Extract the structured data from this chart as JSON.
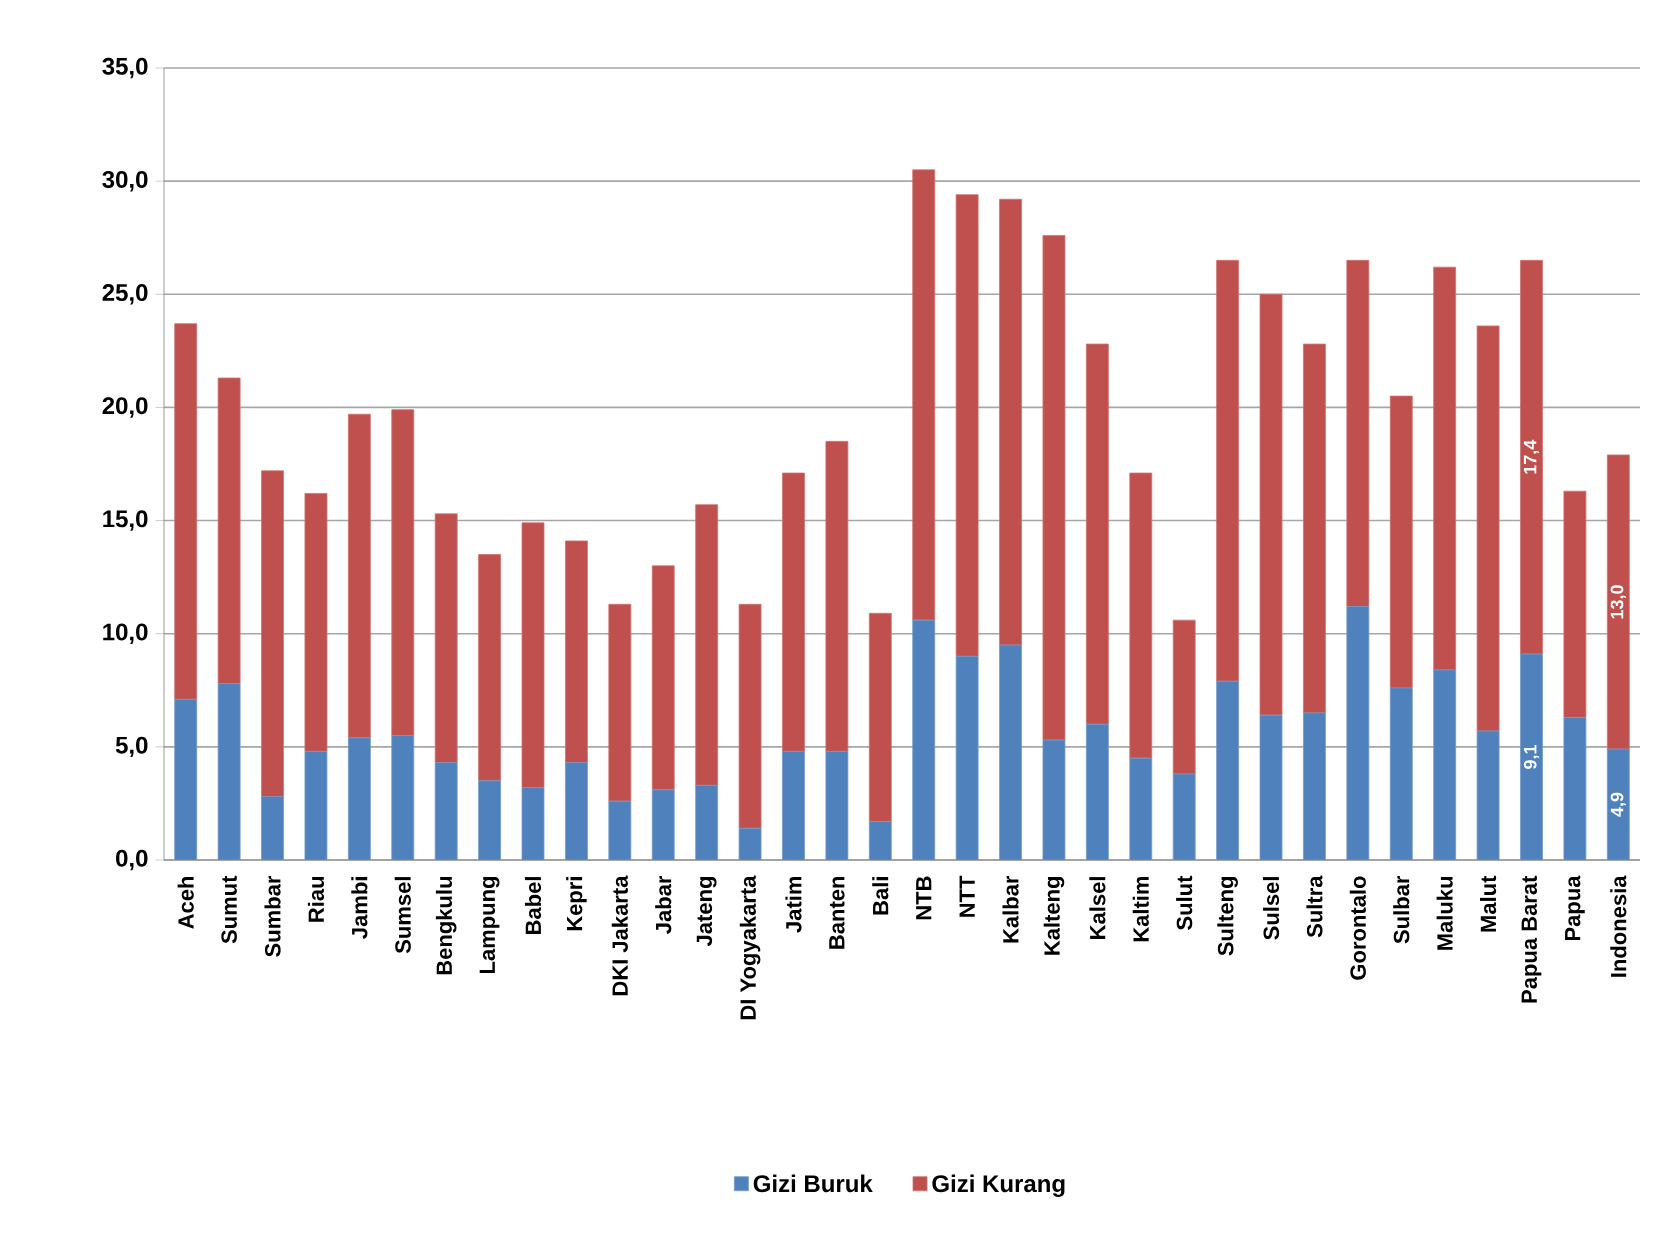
{
  "chart_data": {
    "type": "bar",
    "stacked": true,
    "grid": "y",
    "legend": "bottom",
    "categories": [
      "Aceh",
      "Sumut",
      "Sumbar",
      "Riau",
      "Jambi",
      "Sumsel",
      "Bengkulu",
      "Lampung",
      "Babel",
      "Kepri",
      "DKI Jakarta",
      "Jabar",
      "Jateng",
      "DI Yogyakarta",
      "Jatim",
      "Banten",
      "Bali",
      "NTB",
      "NTT",
      "Kalbar",
      "Kalteng",
      "Kalsel",
      "Kaltim",
      "Sulut",
      "Sulteng",
      "Sulsel",
      "Sultra",
      "Gorontalo",
      "Sulbar",
      "Maluku",
      "Malut",
      "Papua Barat",
      "Papua",
      "Indonesia"
    ],
    "series": [
      {
        "name": "Gizi Buruk",
        "color": "#4f81bd",
        "values": [
          7.1,
          7.8,
          2.8,
          4.8,
          5.4,
          5.5,
          4.3,
          3.5,
          3.2,
          4.3,
          2.6,
          3.1,
          3.3,
          1.4,
          4.8,
          4.8,
          1.7,
          10.6,
          9.0,
          9.5,
          5.3,
          6.0,
          4.5,
          3.8,
          7.9,
          6.4,
          6.5,
          11.2,
          7.6,
          8.4,
          5.7,
          9.1,
          6.3,
          4.9
        ],
        "value_labels": [
          null,
          null,
          null,
          null,
          null,
          null,
          null,
          null,
          null,
          null,
          null,
          null,
          null,
          null,
          null,
          null,
          null,
          null,
          null,
          null,
          null,
          null,
          null,
          null,
          null,
          null,
          null,
          null,
          null,
          null,
          null,
          "9,1",
          null,
          "4,9"
        ]
      },
      {
        "name": "Gizi Kurang",
        "color": "#c0504d",
        "values": [
          16.6,
          13.5,
          14.4,
          11.4,
          14.3,
          14.4,
          11.0,
          10.0,
          11.7,
          9.8,
          8.7,
          9.9,
          12.4,
          9.9,
          12.3,
          13.7,
          9.2,
          19.9,
          20.4,
          19.7,
          22.3,
          16.8,
          12.6,
          6.8,
          18.6,
          18.6,
          16.3,
          15.3,
          12.9,
          17.8,
          17.9,
          17.4,
          10.0,
          13.0
        ],
        "value_labels": [
          null,
          null,
          null,
          null,
          null,
          null,
          null,
          null,
          null,
          null,
          null,
          null,
          null,
          null,
          null,
          null,
          null,
          null,
          null,
          null,
          null,
          null,
          null,
          null,
          null,
          null,
          null,
          null,
          null,
          null,
          null,
          "17,4",
          null,
          "13,0"
        ]
      }
    ],
    "ylim": [
      0,
      35
    ],
    "yticks": [
      {
        "value": 0,
        "label": "0,0"
      },
      {
        "value": 5,
        "label": "5,0"
      },
      {
        "value": 10,
        "label": "10,0"
      },
      {
        "value": 15,
        "label": "15,0"
      },
      {
        "value": 20,
        "label": "20,0"
      },
      {
        "value": 25,
        "label": "25,0"
      },
      {
        "value": 30,
        "label": "30,0"
      },
      {
        "value": 35,
        "label": "35,0"
      }
    ]
  }
}
